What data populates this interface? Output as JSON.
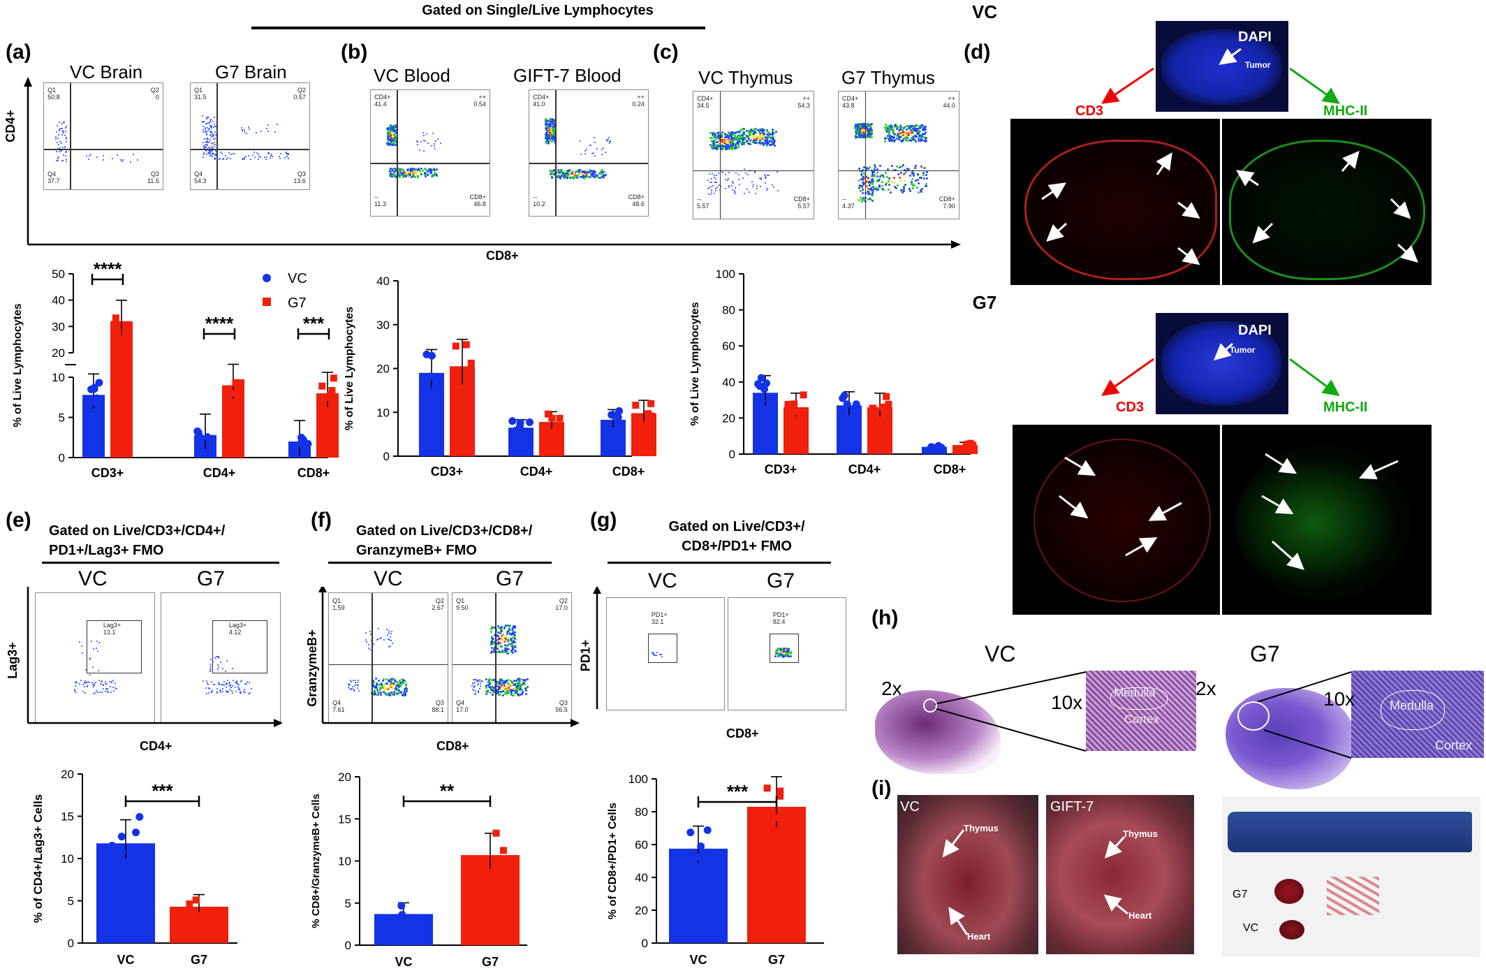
{
  "top_gate_title": "Gated on Single/Live Lymphocytes",
  "panels": {
    "a": {
      "letter": "(a)",
      "titles": [
        "VC Brain",
        "G7 Brain"
      ],
      "plots": [
        {
          "q1": "Q1\n50.8",
          "q2": "Q2\n0",
          "q3": "Q3\n11.5",
          "q4": "Q4\n37.7"
        },
        {
          "q1": "Q1\n31.5",
          "q2": "Q2\n0.57",
          "q3": "Q3\n13.6",
          "q4": "Q4\n54.3"
        }
      ]
    },
    "b": {
      "letter": "(b)",
      "titles": [
        "VC Blood",
        "GIFT-7 Blood"
      ],
      "plots": [
        {
          "q1": "CD4+\n41.4",
          "q2": "++\n0.54",
          "q3": "CD8+\n46.8",
          "q4": "--\n11.3"
        },
        {
          "q1": "CD4+\n41.0",
          "q2": "++\n0.24",
          "q3": "CD8+\n48.6",
          "q4": "--\n10.2"
        }
      ]
    },
    "c": {
      "letter": "(c)",
      "titles": [
        "VC Thymus",
        "G7 Thymus"
      ],
      "plots": [
        {
          "q1": "CD4+\n34.5",
          "q2": "++\n54.3",
          "q3": "CD8+\n5.57",
          "q4": "--\n5.57"
        },
        {
          "q1": "CD4+\n43.8",
          "q2": "++\n44.0",
          "q3": "CD8+\n7.90",
          "q4": "--\n4.37"
        }
      ]
    },
    "d": {
      "letter": "(d)",
      "vc_label": "VC",
      "g7_label": "G7",
      "dapi": "DAPI",
      "tumor": "Tumor",
      "cd3": "CD3",
      "mhc": "MHC-II"
    },
    "e": {
      "letter": "(e)",
      "gate": "Gated on Live/CD3+/CD4+/\nPD1+/Lag3+ FMO",
      "titles": [
        "VC",
        "G7"
      ],
      "gates": [
        "Lag3+\n13.1",
        "Lag3+\n4.12"
      ],
      "ylabel": "Lag3+",
      "xlabel": "CD4+"
    },
    "f": {
      "letter": "(f)",
      "gate": "Gated on Live/CD3+/CD8+/\nGranzymeB+ FMO",
      "titles": [
        "VC",
        "G7"
      ],
      "plots": [
        {
          "q1": "Q1\n1.59",
          "q2": "Q2\n2.67",
          "q3": "Q3\n88.1",
          "q4": "Q4\n7.61"
        },
        {
          "q1": "Q1\n9.50",
          "q2": "Q2\n17.0",
          "q3": "Q3\n56.5",
          "q4": "Q4\n17.0"
        }
      ],
      "ylabel": "GranzymeB+",
      "xlabel": "CD8+"
    },
    "g": {
      "letter": "(g)",
      "gate": "Gated on Live/CD3+/\nCD8+/PD1+ FMO",
      "titles": [
        "VC",
        "G7"
      ],
      "gates": [
        "PD1+\n32.1",
        "PD1+\n82.4"
      ],
      "ylabel": "PD1+",
      "xlabel": "CD8+"
    },
    "h": {
      "letter": "(h)",
      "vc": "VC",
      "g7": "G7",
      "mag2": "2x",
      "mag10": "10x",
      "medulla": "Medulla",
      "cortex": "Cortex"
    },
    "i": {
      "letter": "(i)",
      "vc": "VC",
      "gift": "GIFT-7",
      "thymus": "Thymus",
      "heart": "Heart",
      "g7": "G7"
    }
  },
  "flow_axis": {
    "ylabel": "CD4+",
    "xlabel": "CD8+"
  },
  "colors": {
    "vc": "#1433e6",
    "g7": "#f0200c"
  },
  "chart_data": [
    {
      "type": "bar",
      "id": "a",
      "categories": [
        "CD3+",
        "CD4+",
        "CD8+"
      ],
      "series": [
        {
          "name": "VC",
          "values": [
            7.8,
            2.8,
            2.0
          ]
        },
        {
          "name": "G7",
          "values": [
            32,
            9.0,
            8.0
          ]
        }
      ],
      "ylabel": "% of Live Lymphocytes",
      "ylim": [
        0,
        50
      ],
      "broken_axis": [
        10,
        20
      ],
      "yticks": [
        "0",
        "5",
        "10",
        "20",
        "30",
        "40",
        "50"
      ],
      "sig": [
        "****",
        "****",
        "***"
      ],
      "legend": "top-right"
    },
    {
      "type": "bar",
      "id": "b",
      "categories": [
        "CD3+",
        "CD4+",
        "CD8+"
      ],
      "series": [
        {
          "values": [
            19,
            6.5,
            8.3
          ]
        },
        {
          "values": [
            20.5,
            7.8,
            9.8
          ]
        }
      ],
      "ylabel": "% of Live Lymphocytes",
      "ylim": [
        0,
        40
      ],
      "yticks": [
        "0",
        "10",
        "20",
        "30",
        "40"
      ]
    },
    {
      "type": "bar",
      "id": "c",
      "categories": [
        "CD3+",
        "CD4+",
        "CD8+"
      ],
      "series": [
        {
          "values": [
            34,
            27,
            4
          ]
        },
        {
          "values": [
            26,
            26,
            5
          ]
        }
      ],
      "ylabel": "% of Live Lymphocytes",
      "ylim": [
        0,
        100
      ],
      "yticks": [
        "0",
        "20",
        "40",
        "60",
        "80",
        "100"
      ]
    },
    {
      "type": "bar",
      "id": "e",
      "categories": [
        "VC",
        "G7"
      ],
      "values": [
        11.8,
        4.3
      ],
      "ylabel": "% of CD4+/Lag3+ Cells",
      "ylim": [
        0,
        20
      ],
      "yticks": [
        "0",
        "5",
        "10",
        "15",
        "20"
      ],
      "sig": [
        "***"
      ]
    },
    {
      "type": "bar",
      "id": "f",
      "categories": [
        "VC",
        "G7"
      ],
      "values": [
        3.7,
        10.7
      ],
      "ylabel": "% CD8+/GranzymeB+ Cells",
      "ylim": [
        0,
        20
      ],
      "yticks": [
        "0",
        "5",
        "10",
        "15",
        "20"
      ],
      "sig": [
        "**"
      ]
    },
    {
      "type": "bar",
      "id": "g",
      "categories": [
        "VC",
        "G7"
      ],
      "values": [
        57.5,
        83
      ],
      "ylabel": "% of CD8+/PD1+ Cells",
      "ylim": [
        0,
        100
      ],
      "yticks": [
        "0",
        "20",
        "40",
        "60",
        "80",
        "100"
      ],
      "sig": [
        "***"
      ]
    }
  ]
}
